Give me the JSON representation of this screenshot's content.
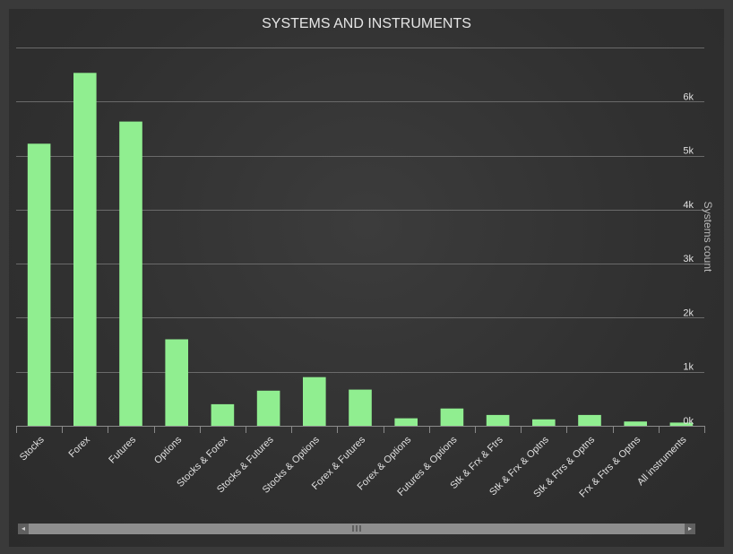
{
  "chart_data": {
    "type": "bar",
    "title": "SYSTEMS AND INSTRUMENTS",
    "ylabel": "Systems count",
    "xlabel": "",
    "ylim": [
      0,
      7000
    ],
    "y_axis_position": "right",
    "yticks": [
      0,
      1000,
      2000,
      3000,
      4000,
      5000,
      6000
    ],
    "ytick_labels": [
      "0k",
      "1k",
      "2k",
      "3k",
      "4k",
      "5k",
      "6k"
    ],
    "grid": true,
    "bar_color": "#90ee90",
    "categories": [
      "Stocks",
      "Forex",
      "Futures",
      "Options",
      "Stocks & Forex",
      "Stocks & Futures",
      "Stocks & Options",
      "Forex & Futures",
      "Forex & Options",
      "Futures & Options",
      "Stk & Frx & Ftrs",
      "Stk & Frx & Optns",
      "Stk & Ftrs & Optns",
      "Frx & Ftrs & Optns",
      "All instruments"
    ],
    "values": [
      5220,
      6530,
      5630,
      1600,
      400,
      650,
      900,
      670,
      140,
      320,
      200,
      120,
      200,
      80,
      60
    ]
  },
  "scrollbar": {
    "left_arrow": "◂",
    "right_arrow": "▸"
  }
}
